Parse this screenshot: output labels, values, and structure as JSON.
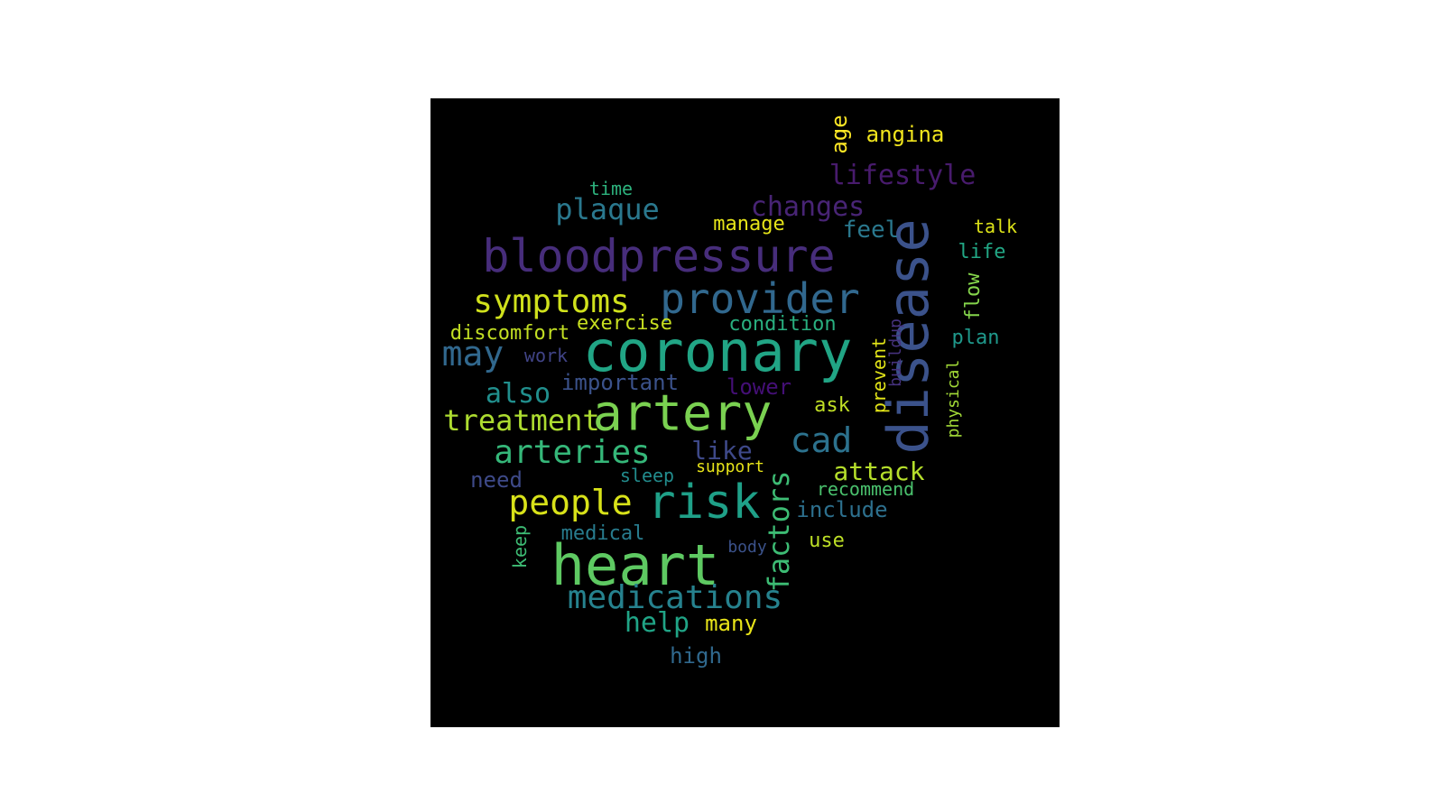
{
  "background": "#000000",
  "words": [
    {
      "key": "coronary",
      "text": "coronary",
      "color": "#21a585"
    },
    {
      "key": "disease",
      "text": "disease",
      "color": "#3b528b"
    },
    {
      "key": "artery",
      "text": "artery",
      "color": "#7ad151"
    },
    {
      "key": "heart",
      "text": "heart",
      "color": "#5ec962"
    },
    {
      "key": "bloodpressure",
      "text": "bloodpressure",
      "color": "#472d7b"
    },
    {
      "key": "risk",
      "text": "risk",
      "color": "#1fa088"
    },
    {
      "key": "provider",
      "text": "provider",
      "color": "#31688e"
    },
    {
      "key": "cad",
      "text": "cad",
      "color": "#2c728e"
    },
    {
      "key": "people",
      "text": "people",
      "color": "#d8e219"
    },
    {
      "key": "symptoms",
      "text": "symptoms",
      "color": "#d0e11c"
    },
    {
      "key": "arteries",
      "text": "arteries",
      "color": "#35b779"
    },
    {
      "key": "medications",
      "text": "medications",
      "color": "#26828e"
    },
    {
      "key": "may",
      "text": "may",
      "color": "#31688e"
    },
    {
      "key": "factors",
      "text": "factors",
      "color": "#3dbc74"
    },
    {
      "key": "lifestyle",
      "text": "lifestyle",
      "color": "#481b6d"
    },
    {
      "key": "changes",
      "text": "changes",
      "color": "#482475"
    },
    {
      "key": "plaque",
      "text": "plaque",
      "color": "#2a788e"
    },
    {
      "key": "treatment",
      "text": "treatment",
      "color": "#addc30"
    },
    {
      "key": "also",
      "text": "also",
      "color": "#218f8d"
    },
    {
      "key": "attack",
      "text": "attack",
      "color": "#b5de2b"
    },
    {
      "key": "help",
      "text": "help",
      "color": "#20a486"
    },
    {
      "key": "like",
      "text": "like",
      "color": "#3e4989"
    },
    {
      "key": "include",
      "text": "include",
      "color": "#2d708e"
    },
    {
      "key": "feel",
      "text": "feel",
      "color": "#2a788e"
    },
    {
      "key": "angina",
      "text": "angina",
      "color": "#f1e51d"
    },
    {
      "key": "age",
      "text": "age",
      "color": "#fde725"
    },
    {
      "key": "lower",
      "text": "lower",
      "color": "#440f76"
    },
    {
      "key": "important",
      "text": "important",
      "color": "#3b528b"
    },
    {
      "key": "condition",
      "text": "condition",
      "color": "#29af7f"
    },
    {
      "key": "exercise",
      "text": "exercise",
      "color": "#c8e020"
    },
    {
      "key": "discomfort",
      "text": "discomfort",
      "color": "#c2df23"
    },
    {
      "key": "work",
      "text": "work",
      "color": "#414487"
    },
    {
      "key": "manage",
      "text": "manage",
      "color": "#e5e419"
    },
    {
      "key": "time",
      "text": "time",
      "color": "#2db27d"
    },
    {
      "key": "talk",
      "text": "talk",
      "color": "#dde318"
    },
    {
      "key": "life",
      "text": "life",
      "color": "#22a785"
    },
    {
      "key": "flow",
      "text": "flow",
      "color": "#84d44b"
    },
    {
      "key": "plan",
      "text": "plan",
      "color": "#1f988b"
    },
    {
      "key": "buildup",
      "text": "buildup",
      "color": "#46327e"
    },
    {
      "key": "prevent",
      "text": "prevent",
      "color": "#e2e418"
    },
    {
      "key": "physical",
      "text": "physical",
      "color": "#a2da37"
    },
    {
      "key": "ask",
      "text": "ask",
      "color": "#c0df25"
    },
    {
      "key": "need",
      "text": "need",
      "color": "#3e4a89"
    },
    {
      "key": "sleep",
      "text": "sleep",
      "color": "#228c8d"
    },
    {
      "key": "support",
      "text": "support",
      "color": "#e7e419"
    },
    {
      "key": "recommend",
      "text": "recommend",
      "color": "#4ac16d"
    },
    {
      "key": "medical",
      "text": "medical",
      "color": "#287c8e"
    },
    {
      "key": "keep",
      "text": "keep",
      "color": "#3dbc74"
    },
    {
      "key": "body",
      "text": "body",
      "color": "#3b528b"
    },
    {
      "key": "use",
      "text": "use",
      "color": "#bddf26"
    },
    {
      "key": "many",
      "text": "many",
      "color": "#e8e419"
    },
    {
      "key": "high",
      "text": "high",
      "color": "#30698e"
    }
  ]
}
